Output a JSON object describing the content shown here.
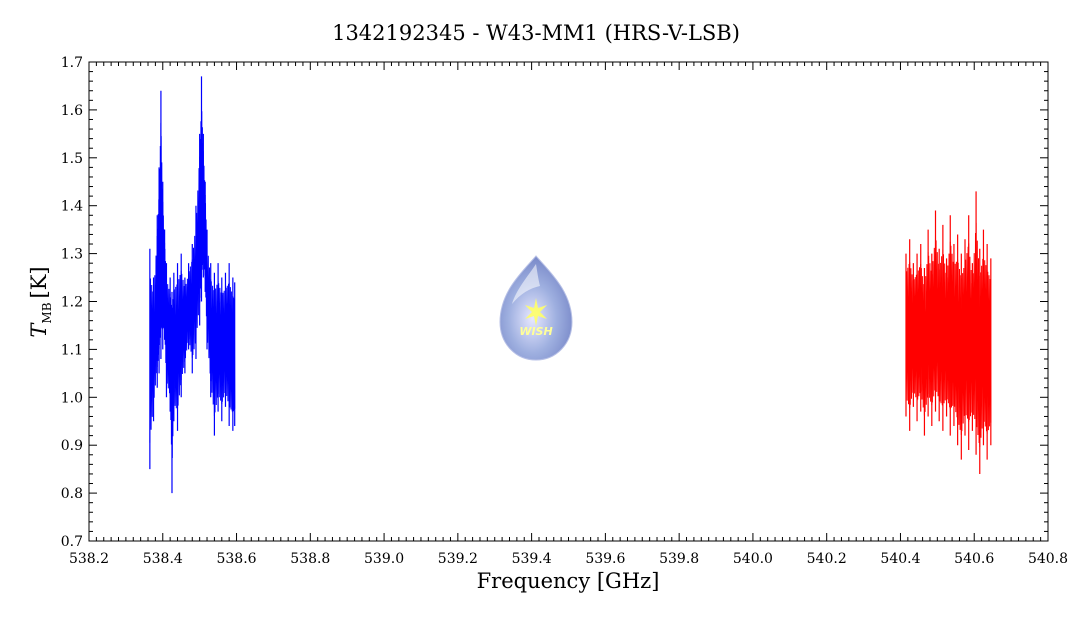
{
  "chart_data": {
    "type": "line",
    "title": "1342192345 - W43-MM1 (HRS-V-LSB)",
    "xlabel": "Frequency [GHz]",
    "ylabel": "T",
    "ylabel_sub": "MB",
    "ylabel_unit": "[K]",
    "xlim": [
      538.2,
      540.8
    ],
    "ylim": [
      0.7,
      1.7
    ],
    "xticks": [
      "538.2",
      "538.4",
      "538.6",
      "538.8",
      "539.0",
      "539.2",
      "539.4",
      "539.6",
      "539.8",
      "540.0",
      "540.2",
      "540.4",
      "540.6",
      "540.8"
    ],
    "yticks": [
      "0.7",
      "0.8",
      "0.9",
      "1.0",
      "1.1",
      "1.2",
      "1.3",
      "1.4",
      "1.5",
      "1.6",
      "1.7"
    ],
    "grid": false,
    "logo_text": "WISH",
    "series": [
      {
        "color": "#0000ff",
        "x": [
          538.365,
          538.375,
          538.385,
          538.39,
          538.395,
          538.4,
          538.405,
          538.41,
          538.42,
          538.425,
          538.43,
          538.44,
          538.45,
          538.46,
          538.47,
          538.48,
          538.49,
          538.5,
          538.505,
          538.51,
          538.515,
          538.52,
          538.53,
          538.54,
          538.55,
          538.56,
          538.57,
          538.58,
          538.59,
          538.595
        ],
        "ymin": [
          0.85,
          0.95,
          1.02,
          1.05,
          1.08,
          1.1,
          1.12,
          1.0,
          0.97,
          0.8,
          0.95,
          0.93,
          1.0,
          1.05,
          1.1,
          1.05,
          1.08,
          1.15,
          1.2,
          1.25,
          1.22,
          1.1,
          1.0,
          0.92,
          0.97,
          0.95,
          0.98,
          0.94,
          0.93,
          0.94
        ],
        "ymax": [
          1.31,
          1.25,
          1.38,
          1.48,
          1.64,
          1.45,
          1.35,
          1.28,
          1.25,
          1.22,
          1.26,
          1.28,
          1.3,
          1.25,
          1.28,
          1.32,
          1.4,
          1.55,
          1.67,
          1.55,
          1.45,
          1.35,
          1.28,
          1.26,
          1.28,
          1.25,
          1.26,
          1.28,
          1.25,
          1.24
        ]
      },
      {
        "color": "#ff0000",
        "x": [
          540.415,
          540.425,
          540.435,
          540.445,
          540.455,
          540.465,
          540.475,
          540.485,
          540.495,
          540.505,
          540.515,
          540.525,
          540.535,
          540.545,
          540.555,
          540.565,
          540.575,
          540.585,
          540.595,
          540.605,
          540.615,
          540.625,
          540.635,
          540.645
        ],
        "ymin": [
          0.96,
          0.93,
          0.98,
          0.95,
          0.97,
          0.92,
          0.96,
          0.94,
          0.97,
          0.95,
          0.93,
          0.96,
          0.92,
          0.94,
          0.9,
          0.87,
          0.92,
          0.89,
          0.93,
          0.88,
          0.84,
          0.9,
          0.87,
          0.9
        ],
        "ymax": [
          1.3,
          1.33,
          1.28,
          1.3,
          1.32,
          1.27,
          1.35,
          1.3,
          1.39,
          1.31,
          1.36,
          1.29,
          1.38,
          1.32,
          1.34,
          1.3,
          1.33,
          1.38,
          1.28,
          1.43,
          1.31,
          1.35,
          1.32,
          1.29
        ]
      }
    ]
  }
}
